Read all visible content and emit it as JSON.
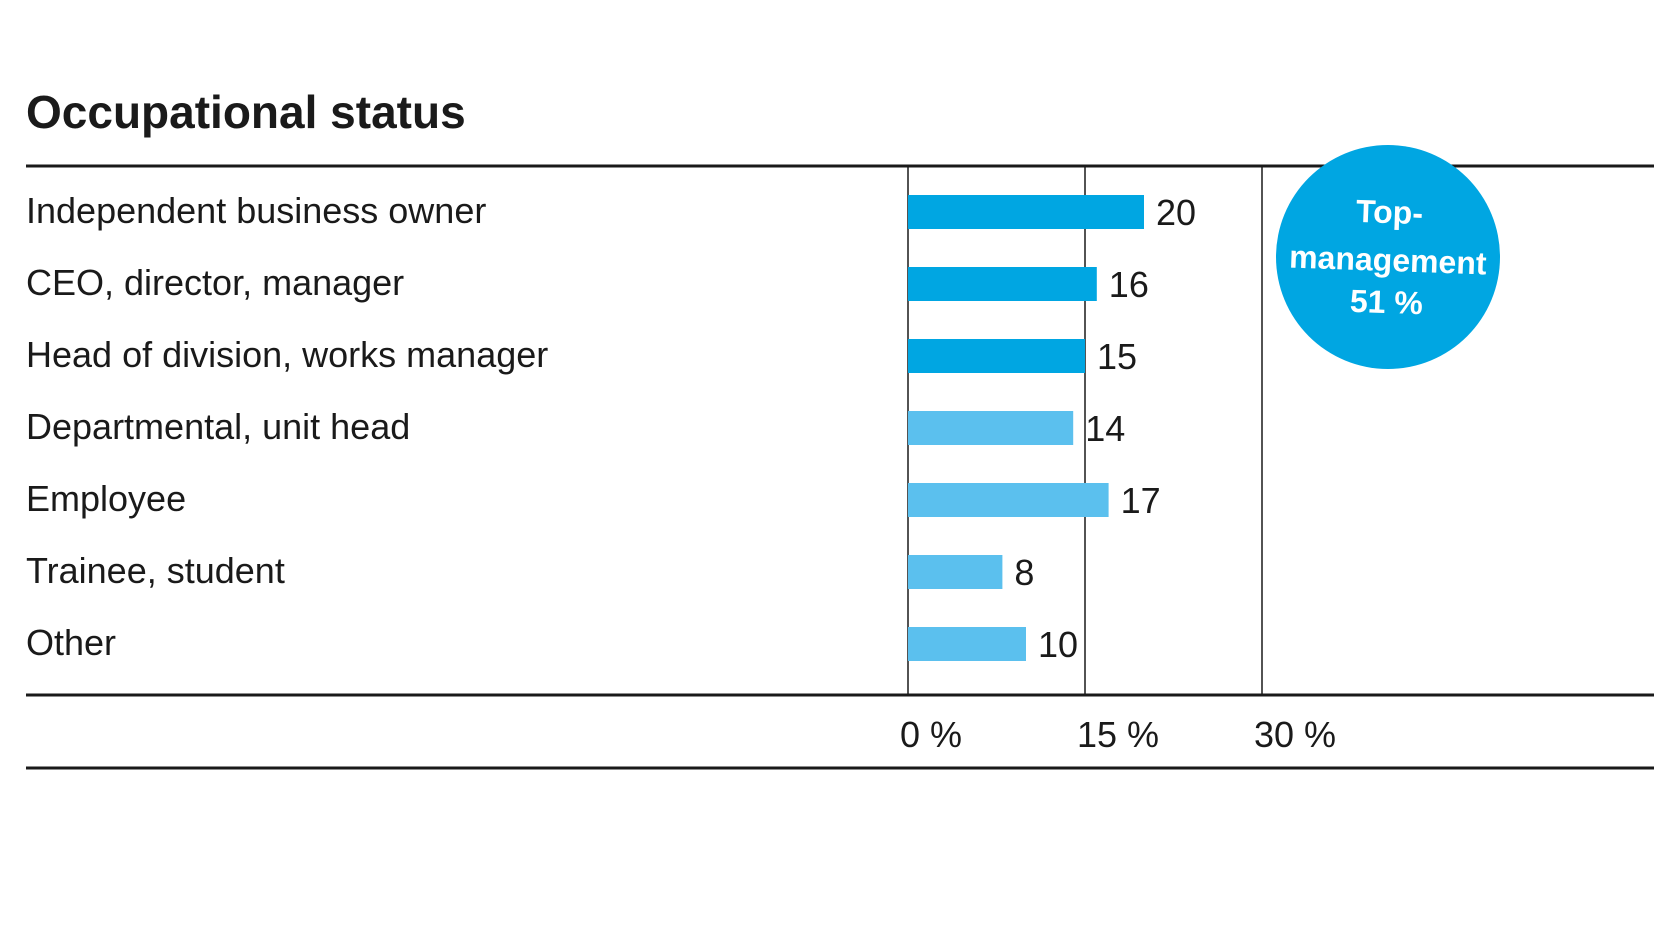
{
  "chart_data": {
    "type": "bar",
    "orientation": "horizontal",
    "title": "Occupational status",
    "categories": [
      "Independent business owner",
      "CEO, director, manager",
      "Head of division, works manager",
      "Departmental, unit head",
      "Employee",
      "Trainee, student",
      "Other"
    ],
    "values": [
      20,
      16,
      15,
      14,
      17,
      8,
      10
    ],
    "value_labels": [
      "20",
      "16",
      "15",
      "14",
      "17",
      "8",
      "10"
    ],
    "xlim": [
      0,
      30
    ],
    "x_ticks": [
      0,
      15,
      30
    ],
    "x_tick_labels": [
      "0 %",
      "15 %",
      "30 %"
    ],
    "grid": true,
    "highlight_group": {
      "categories": [
        "Independent business owner",
        "CEO, director, manager",
        "Head of division, works manager"
      ],
      "label_lines": [
        "Top-",
        "management",
        "51 %"
      ]
    },
    "colors": {
      "highlight_bar": "#00a6e2",
      "regular_bar": "#5bc0ee",
      "badge": "#00a6e2",
      "text": "#1a1a1a",
      "rule": "#1a1a1a"
    }
  }
}
